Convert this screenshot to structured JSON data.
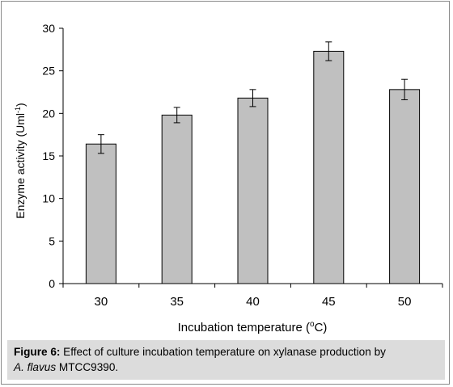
{
  "chart_data": {
    "type": "bar",
    "categories": [
      "30",
      "35",
      "40",
      "45",
      "50"
    ],
    "values": [
      16.4,
      19.8,
      21.8,
      27.3,
      22.8
    ],
    "errors": [
      1.1,
      0.9,
      1.0,
      1.1,
      1.2
    ],
    "xlabel": {
      "text": "Incubation temperature (",
      "sup": "o",
      "after": "C)"
    },
    "ylabel": {
      "text": "Enzyme activity (Uml",
      "sup": "-1",
      "after": ")"
    },
    "ylim": [
      0,
      30
    ],
    "yticks": [
      0,
      5,
      10,
      15,
      20,
      25,
      30
    ],
    "grid": false,
    "bar_color": "#c0c0c0"
  },
  "caption": {
    "label": "Figure 6:",
    "text": " Effect of culture incubation temperature on xylanase production by",
    "species": "A. flavus",
    "strain": " MTCC9390."
  }
}
